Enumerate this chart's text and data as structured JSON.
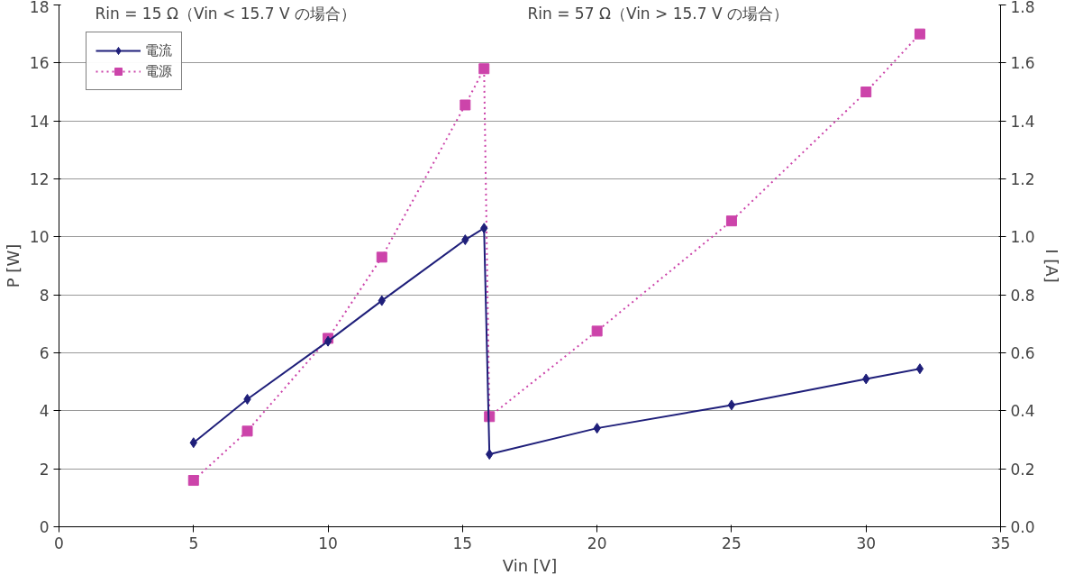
{
  "chart_data": {
    "type": "line",
    "xlabel": "Vin [V]",
    "ylabel": "P [W]",
    "y2label": "I [A]",
    "annotations": [
      "Rin = 15 Ω（Vin < 15.7 V の場合）",
      "Rin = 57 Ω（Vin > 15.7 V の場合）"
    ],
    "x": [
      5,
      7,
      10,
      12,
      15.1,
      15.8,
      16,
      20,
      25,
      30,
      32
    ],
    "series": [
      {
        "name": "電流",
        "color": "#1f1f7a",
        "axis": "y2",
        "marker": "diamond",
        "line_style": "solid",
        "values": [
          0.29,
          0.44,
          0.64,
          0.78,
          0.99,
          1.03,
          0.25,
          0.34,
          0.42,
          0.51,
          0.545
        ]
      },
      {
        "name": "電源",
        "color": "#cc44aa",
        "marker": "square",
        "line_style": "dotted",
        "values": [
          1.6,
          3.3,
          6.5,
          9.3,
          14.55,
          15.8,
          3.8,
          6.75,
          10.55,
          15.0,
          17.0
        ]
      }
    ],
    "xlim": [
      0,
      35
    ],
    "xticks": [
      0,
      5,
      10,
      15,
      20,
      25,
      30,
      35
    ],
    "ylim": [
      0,
      18
    ],
    "yticks": [
      0,
      2,
      4,
      6,
      8,
      10,
      12,
      14,
      16,
      18
    ],
    "y2lim": [
      0,
      1.8
    ],
    "y2ticks": [
      {
        "value": 0,
        "label": "0.0"
      },
      {
        "value": 0.2,
        "label": "0.2"
      },
      {
        "value": 0.4,
        "label": "0.4"
      },
      {
        "value": 0.6,
        "label": "0.6"
      },
      {
        "value": 0.8,
        "label": "0.8"
      },
      {
        "value": 1.0,
        "label": "1.0"
      },
      {
        "value": 1.2,
        "label": "1.2"
      },
      {
        "value": 1.4,
        "label": "1.4"
      },
      {
        "value": 1.6,
        "label": "1.6"
      },
      {
        "value": 1.8,
        "label": "1.8"
      }
    ],
    "grid": "y",
    "legend": "top left"
  }
}
